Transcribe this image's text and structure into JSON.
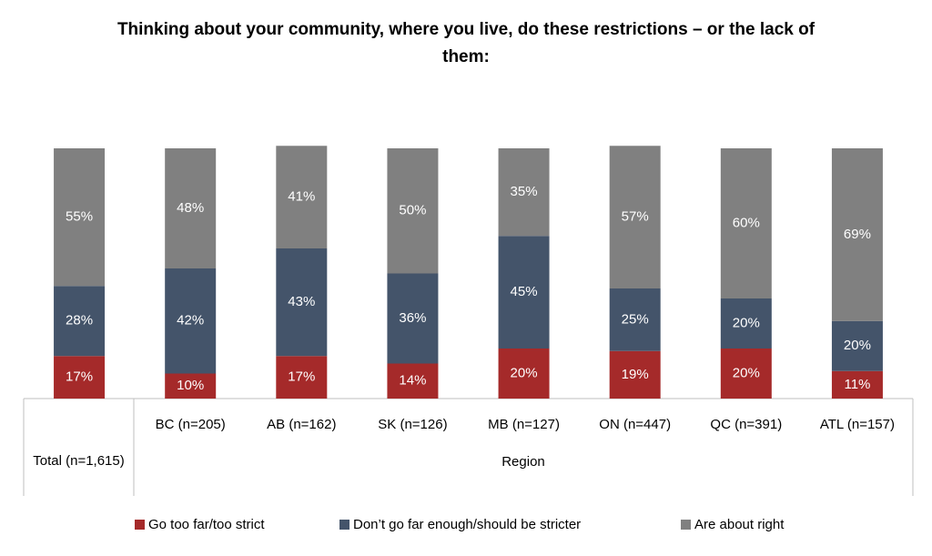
{
  "chart_data": {
    "type": "stacked_bar",
    "title": "Thinking about your community, where you live, do these restrictions – or the lack of them:",
    "categories": [
      "Total (n=1,615)",
      "BC (n=205)",
      "AB (n=162)",
      "SK (n=126)",
      "MB (n=127)",
      "ON (n=447)",
      "QC (n=391)",
      "ATL (n=157)"
    ],
    "category_group": "Region",
    "ylim": [
      0,
      100
    ],
    "legend": "bottom",
    "series": [
      {
        "name": "Go too far/too strict",
        "color": "#a52a2a",
        "values": [
          17,
          10,
          17,
          14,
          20,
          19,
          20,
          11
        ],
        "value_labels": [
          "17%",
          "10%",
          "17%",
          "14%",
          "20%",
          "19%",
          "20%",
          "11%"
        ]
      },
      {
        "name": "Don’t go far enough/should be stricter",
        "color": "#44546a",
        "values": [
          28,
          42,
          43,
          36,
          45,
          25,
          20,
          20
        ],
        "value_labels": [
          "28%",
          "42%",
          "43%",
          "36%",
          "45%",
          "25%",
          "20%",
          "20%"
        ]
      },
      {
        "name": "Are about right",
        "color": "#808080",
        "values": [
          55,
          48,
          41,
          50,
          35,
          57,
          60,
          69
        ],
        "value_labels": [
          "55%",
          "48%",
          "41%",
          "50%",
          "35%",
          "57%",
          "60%",
          "69%"
        ]
      }
    ]
  }
}
